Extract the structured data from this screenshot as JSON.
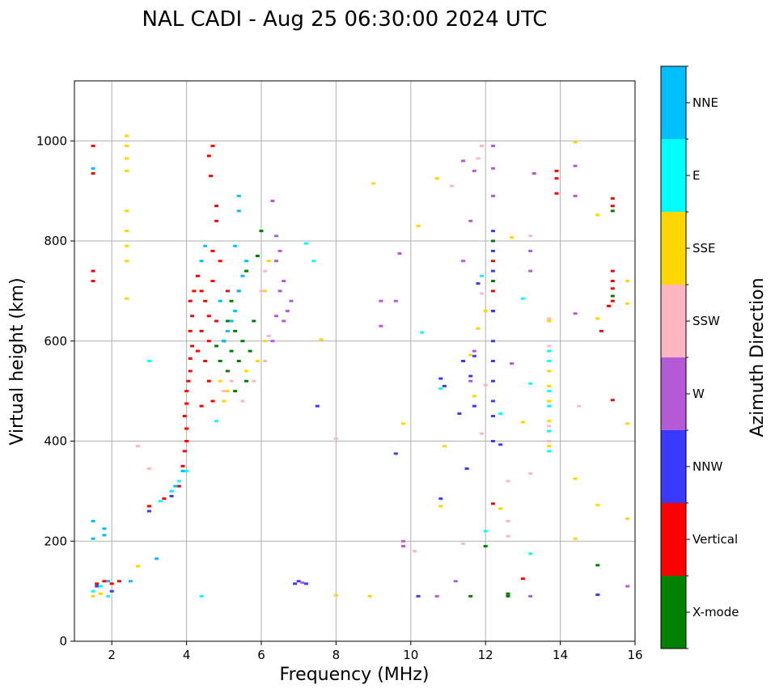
{
  "chart_data": {
    "type": "scatter",
    "title": "NAL CADI - Aug 25 06:30:00 2024 UTC",
    "xlabel": "Frequency (MHz)",
    "ylabel": "Virtual height (km)",
    "xlim": [
      1,
      16
    ],
    "ylim": [
      0,
      1120
    ],
    "xticks": [
      2,
      4,
      6,
      8,
      10,
      12,
      14,
      16
    ],
    "yticks": [
      0,
      200,
      400,
      600,
      800,
      1000
    ],
    "grid": true,
    "colorbar": {
      "label": "Azimuth Direction",
      "categories": [
        {
          "name": "X-mode",
          "color": "#008000"
        },
        {
          "name": "Vertical",
          "color": "#ff0000"
        },
        {
          "name": "NNW",
          "color": "#3a3aff"
        },
        {
          "name": "W",
          "color": "#b45ad6"
        },
        {
          "name": "SSW",
          "color": "#ffb6c1"
        },
        {
          "name": "SSE",
          "color": "#ffd700"
        },
        {
          "name": "E",
          "color": "#00ffff"
        },
        {
          "name": "NNE",
          "color": "#00bfff"
        }
      ]
    },
    "series": [
      {
        "name": "Vertical",
        "color": "#ff0000",
        "points": [
          [
            1.5,
            990
          ],
          [
            1.5,
            935
          ],
          [
            1.5,
            740
          ],
          [
            1.5,
            720
          ],
          [
            1.6,
            115
          ],
          [
            1.8,
            120
          ],
          [
            2.0,
            115
          ],
          [
            2.2,
            120
          ],
          [
            3.0,
            270
          ],
          [
            3.4,
            285
          ],
          [
            3.6,
            300
          ],
          [
            3.8,
            310
          ],
          [
            3.9,
            350
          ],
          [
            3.95,
            380
          ],
          [
            4.0,
            400
          ],
          [
            4.0,
            425
          ],
          [
            3.95,
            450
          ],
          [
            4.0,
            475
          ],
          [
            4.0,
            500
          ],
          [
            4.05,
            520
          ],
          [
            4.1,
            540
          ],
          [
            4.1,
            565
          ],
          [
            4.15,
            590
          ],
          [
            4.1,
            620
          ],
          [
            4.15,
            650
          ],
          [
            4.1,
            680
          ],
          [
            4.2,
            700
          ],
          [
            4.3,
            730
          ],
          [
            4.4,
            700
          ],
          [
            4.5,
            680
          ],
          [
            4.6,
            650
          ],
          [
            4.7,
            720
          ],
          [
            4.7,
            780
          ],
          [
            4.8,
            840
          ],
          [
            4.8,
            870
          ],
          [
            4.7,
            990
          ],
          [
            4.6,
            970
          ],
          [
            4.65,
            930
          ],
          [
            4.4,
            620
          ],
          [
            4.3,
            580
          ],
          [
            4.5,
            560
          ],
          [
            4.6,
            520
          ],
          [
            4.8,
            640
          ],
          [
            4.9,
            760
          ],
          [
            5.1,
            700
          ],
          [
            4.6,
            600
          ],
          [
            4.7,
            480
          ],
          [
            4.4,
            470
          ],
          [
            12.2,
            275
          ],
          [
            12.2,
            700
          ],
          [
            12.2,
            760
          ],
          [
            13.9,
            940
          ],
          [
            13.9,
            925
          ],
          [
            13.9,
            895
          ],
          [
            15.4,
            885
          ],
          [
            15.4,
            870
          ],
          [
            15.4,
            740
          ],
          [
            15.4,
            720
          ],
          [
            15.4,
            705
          ],
          [
            15.4,
            680
          ],
          [
            15.3,
            670
          ],
          [
            15.4,
            482
          ],
          [
            15.1,
            620
          ],
          [
            13.0,
            125
          ]
        ]
      },
      {
        "name": "X-mode",
        "color": "#008000",
        "points": [
          [
            4.9,
            560
          ],
          [
            5.0,
            600
          ],
          [
            5.1,
            540
          ],
          [
            5.2,
            580
          ],
          [
            5.3,
            620
          ],
          [
            5.4,
            560
          ],
          [
            5.5,
            600
          ],
          [
            5.6,
            520
          ],
          [
            5.7,
            580
          ],
          [
            5.8,
            640
          ],
          [
            5.2,
            680
          ],
          [
            5.4,
            700
          ],
          [
            5.6,
            740
          ],
          [
            5.9,
            770
          ],
          [
            6.0,
            820
          ],
          [
            5.3,
            500
          ],
          [
            5.1,
            640
          ],
          [
            4.8,
            590
          ],
          [
            12.2,
            800
          ],
          [
            12.2,
            720
          ],
          [
            12.2,
            660
          ],
          [
            12.6,
            90
          ],
          [
            12.6,
            95
          ],
          [
            15.4,
            690
          ],
          [
            15.4,
            860
          ],
          [
            15.0,
            152
          ],
          [
            11.6,
            90
          ],
          [
            12.0,
            190
          ]
        ]
      },
      {
        "name": "NNW",
        "color": "#3a3aff",
        "points": [
          [
            1.6,
            110
          ],
          [
            2.0,
            100
          ],
          [
            3.0,
            260
          ],
          [
            3.6,
            290
          ],
          [
            12.2,
            660
          ],
          [
            12.2,
            600
          ],
          [
            12.2,
            560
          ],
          [
            12.2,
            520
          ],
          [
            12.2,
            480
          ],
          [
            12.2,
            450
          ],
          [
            12.2,
            400
          ],
          [
            12.2,
            820
          ],
          [
            12.2,
            780
          ],
          [
            12.2,
            740
          ],
          [
            11.5,
            345
          ],
          [
            10.9,
            510
          ],
          [
            10.8,
            525
          ],
          [
            11.6,
            530
          ],
          [
            11.7,
            470
          ],
          [
            11.4,
            560
          ],
          [
            11.7,
            570
          ],
          [
            11.3,
            455
          ],
          [
            10.8,
            285
          ],
          [
            7.5,
            470
          ],
          [
            6.9,
            115
          ],
          [
            7.0,
            120
          ],
          [
            7.2,
            115
          ],
          [
            15.0,
            93
          ],
          [
            12.4,
            393
          ],
          [
            10.2,
            90
          ],
          [
            9.6,
            375
          ],
          [
            11.8,
            715
          ]
        ]
      },
      {
        "name": "W",
        "color": "#b45ad6",
        "points": [
          [
            6.3,
            600
          ],
          [
            6.4,
            650
          ],
          [
            6.5,
            700
          ],
          [
            6.6,
            640
          ],
          [
            6.7,
            660
          ],
          [
            6.8,
            680
          ],
          [
            6.4,
            760
          ],
          [
            6.5,
            780
          ],
          [
            6.6,
            720
          ],
          [
            6.3,
            880
          ],
          [
            6.4,
            810
          ],
          [
            12.2,
            990
          ],
          [
            12.2,
            945
          ],
          [
            12.2,
            890
          ],
          [
            11.9,
            990
          ],
          [
            11.4,
            960
          ],
          [
            11.7,
            940
          ],
          [
            11.6,
            840
          ],
          [
            11.4,
            760
          ],
          [
            11.7,
            580
          ],
          [
            9.2,
            630
          ],
          [
            9.2,
            680
          ],
          [
            9.8,
            200
          ],
          [
            9.8,
            190
          ],
          [
            11.6,
            520
          ],
          [
            10.7,
            90
          ],
          [
            11.2,
            120
          ],
          [
            14.4,
            950
          ],
          [
            14.4,
            890
          ],
          [
            14.4,
            655
          ],
          [
            15.8,
            110
          ],
          [
            13.2,
            90
          ],
          [
            12.7,
            555
          ],
          [
            13.3,
            935
          ],
          [
            13.2,
            780
          ],
          [
            13.2,
            740
          ],
          [
            7.1,
            117
          ],
          [
            9.7,
            775
          ],
          [
            9.6,
            680
          ]
        ]
      },
      {
        "name": "SSW",
        "color": "#ffb6c1",
        "points": [
          [
            5.0,
            500
          ],
          [
            5.2,
            520
          ],
          [
            5.5,
            480
          ],
          [
            5.8,
            520
          ],
          [
            6.1,
            560
          ],
          [
            6.2,
            610
          ],
          [
            6.0,
            700
          ],
          [
            6.1,
            740
          ],
          [
            11.9,
            990
          ],
          [
            11.9,
            695
          ],
          [
            12.6,
            320
          ],
          [
            12.6,
            210
          ],
          [
            13.2,
            335
          ],
          [
            13.7,
            645
          ],
          [
            13.7,
            590
          ],
          [
            13.7,
            470
          ],
          [
            13.7,
            430
          ],
          [
            13.7,
            400
          ],
          [
            14.5,
            470
          ],
          [
            11.8,
            965
          ],
          [
            11.1,
            910
          ],
          [
            8.0,
            405
          ],
          [
            12.6,
            240
          ],
          [
            10.1,
            180
          ],
          [
            11.4,
            195
          ],
          [
            12.0,
            512
          ],
          [
            11.9,
            415
          ],
          [
            13.2,
            810
          ],
          [
            3.0,
            345
          ],
          [
            2.7,
            390
          ]
        ]
      },
      {
        "name": "SSE",
        "color": "#ffd700",
        "points": [
          [
            1.5,
            90
          ],
          [
            1.7,
            95
          ],
          [
            2.4,
            1010
          ],
          [
            2.4,
            990
          ],
          [
            2.4,
            965
          ],
          [
            2.4,
            940
          ],
          [
            2.4,
            860
          ],
          [
            2.4,
            820
          ],
          [
            2.4,
            790
          ],
          [
            2.4,
            760
          ],
          [
            2.4,
            685
          ],
          [
            2.7,
            150
          ],
          [
            4.9,
            520
          ],
          [
            5.0,
            480
          ],
          [
            5.1,
            500
          ],
          [
            5.6,
            540
          ],
          [
            5.9,
            560
          ],
          [
            6.1,
            600
          ],
          [
            6.2,
            760
          ],
          [
            6.1,
            700
          ],
          [
            12.0,
            660
          ],
          [
            11.8,
            625
          ],
          [
            11.6,
            572
          ],
          [
            11.7,
            490
          ],
          [
            12.7,
            807
          ],
          [
            13.0,
            438
          ],
          [
            13.7,
            640
          ],
          [
            13.7,
            580
          ],
          [
            13.7,
            540
          ],
          [
            13.7,
            510
          ],
          [
            13.7,
            480
          ],
          [
            13.7,
            440
          ],
          [
            13.7,
            420
          ],
          [
            13.7,
            390
          ],
          [
            14.4,
            325
          ],
          [
            14.4,
            997
          ],
          [
            15.0,
            645
          ],
          [
            15.0,
            272
          ],
          [
            15.0,
            852
          ],
          [
            15.8,
            720
          ],
          [
            15.8,
            675
          ],
          [
            15.8,
            435
          ],
          [
            15.8,
            245
          ],
          [
            12.4,
            265
          ],
          [
            9.0,
            915
          ],
          [
            10.7,
            925
          ],
          [
            10.2,
            830
          ],
          [
            10.8,
            270
          ],
          [
            10.9,
            390
          ],
          [
            9.8,
            435
          ],
          [
            8.9,
            90
          ],
          [
            8.0,
            92
          ],
          [
            7.6,
            603
          ],
          [
            14.4,
            205
          ]
        ]
      },
      {
        "name": "E",
        "color": "#00ffff",
        "points": [
          [
            1.5,
            100
          ],
          [
            1.7,
            110
          ],
          [
            1.9,
            90
          ],
          [
            3.3,
            280
          ],
          [
            3.6,
            300
          ],
          [
            3.8,
            320
          ],
          [
            4.0,
            340
          ],
          [
            4.4,
            90
          ],
          [
            4.8,
            440
          ],
          [
            12.4,
            455
          ],
          [
            12.0,
            220
          ],
          [
            11.9,
            730
          ],
          [
            13.2,
            515
          ],
          [
            13.0,
            685
          ],
          [
            13.7,
            580
          ],
          [
            13.7,
            560
          ],
          [
            13.7,
            500
          ],
          [
            13.7,
            470
          ],
          [
            13.7,
            420
          ],
          [
            13.7,
            380
          ],
          [
            10.3,
            617
          ],
          [
            10.8,
            505
          ],
          [
            7.4,
            760
          ],
          [
            3.0,
            560
          ],
          [
            13.2,
            175
          ],
          [
            7.2,
            795
          ]
        ]
      },
      {
        "name": "NNE",
        "color": "#00bfff",
        "points": [
          [
            1.5,
            240
          ],
          [
            1.5,
            205
          ],
          [
            1.5,
            945
          ],
          [
            1.8,
            225
          ],
          [
            1.8,
            212
          ],
          [
            1.9,
            120
          ],
          [
            3.2,
            165
          ],
          [
            3.7,
            310
          ],
          [
            3.9,
            340
          ],
          [
            5.0,
            600
          ],
          [
            5.2,
            640
          ],
          [
            5.3,
            660
          ],
          [
            5.4,
            700
          ],
          [
            5.5,
            730
          ],
          [
            5.3,
            790
          ],
          [
            5.4,
            860
          ],
          [
            5.4,
            890
          ],
          [
            5.1,
            620
          ],
          [
            4.9,
            680
          ],
          [
            5.6,
            760
          ],
          [
            4.5,
            790
          ],
          [
            4.4,
            760
          ],
          [
            2.5,
            120
          ]
        ]
      }
    ]
  }
}
